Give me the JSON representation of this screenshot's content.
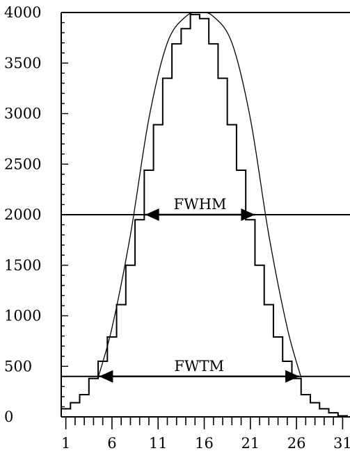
{
  "chart_data": {
    "type": "line",
    "title": "",
    "xlabel": "",
    "ylabel": "",
    "xlim": [
      0.5,
      31.8
    ],
    "ylim": [
      0,
      4000
    ],
    "x_ticks": [
      1,
      6,
      11,
      16,
      21,
      26,
      31
    ],
    "y_ticks": [
      0,
      500,
      1000,
      1500,
      2000,
      2500,
      3000,
      3500,
      4000
    ],
    "grid": false,
    "series": [
      {
        "style": "step",
        "x": [
          1,
          2,
          3,
          4,
          5,
          6,
          7,
          8,
          9,
          10,
          11,
          12,
          13,
          14,
          15,
          16,
          17,
          18,
          19,
          20,
          21,
          22,
          23,
          24,
          25,
          26,
          27,
          28,
          29,
          30,
          31
        ],
        "y": [
          80,
          140,
          220,
          380,
          550,
          790,
          1110,
          1500,
          1950,
          2440,
          2890,
          3350,
          3690,
          3840,
          3980,
          3940,
          3690,
          3350,
          2890,
          2440,
          1950,
          1500,
          1110,
          790,
          550,
          380,
          220,
          140,
          80,
          40,
          10
        ]
      },
      {
        "style": "smooth",
        "x": [
          4.5,
          6,
          8,
          10,
          12,
          14,
          15.5,
          17,
          19,
          21,
          23,
          25,
          26.5
        ],
        "y": [
          390,
          880,
          1800,
          2950,
          3700,
          3960,
          4000,
          3960,
          3700,
          2950,
          1800,
          880,
          390
        ]
      }
    ],
    "annotations": [
      {
        "label": "FWHM",
        "y": 2000,
        "x_start": 9.6,
        "x_end": 21.5
      },
      {
        "label": "FWTM",
        "y": 400,
        "x_start": 4.6,
        "x_end": 26.3
      }
    ]
  }
}
